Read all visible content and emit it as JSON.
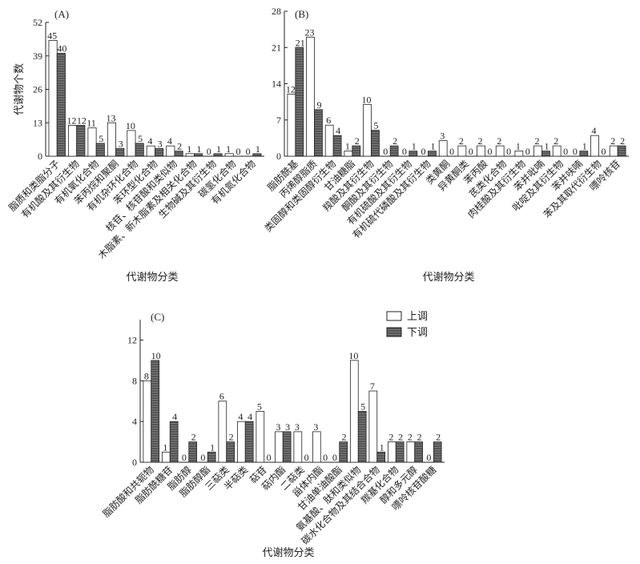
{
  "legend": {
    "up": "上调",
    "down": "下调"
  },
  "colors": {
    "up": "#ffffff",
    "down": "#555555"
  },
  "chart_data": [
    {
      "type": "bar",
      "panel": "(A)",
      "ylabel": "代谢物个数",
      "xlabel": "代谢物分类",
      "ylim": [
        0,
        52
      ],
      "yticks": [
        0,
        13,
        26,
        39,
        52
      ],
      "categories": [
        "脂质和类脂分子",
        "有机酸及其衍生物",
        "有机氧化合物",
        "苯丙烷和聚酮",
        "有机杂环化合物",
        "苯环型化合物",
        "核苷、核苷酸和类似物",
        "木脂素、新木脂素及相关化合物",
        "生物碱及其衍生物",
        "碳氢化合物",
        "有机氮化合物"
      ],
      "series": [
        {
          "name": "上调",
          "values": [
            45,
            12,
            11,
            13,
            10,
            4,
            4,
            1,
            0,
            1,
            0
          ]
        },
        {
          "name": "下调",
          "values": [
            40,
            12,
            5,
            3,
            5,
            3,
            2,
            1,
            1,
            0,
            1
          ]
        }
      ]
    },
    {
      "type": "bar",
      "panel": "(B)",
      "xlabel": "代谢物分类",
      "ylim": [
        0,
        28
      ],
      "yticks": [
        0,
        7,
        14,
        21,
        28
      ],
      "categories": [
        "脂肪酰基",
        "丙烯醇脂质",
        "类固醇和类固醇衍生物",
        "甘油糖脂",
        "羧酸及其衍生物",
        "酮酸及其衍生物",
        "有机硫酸及其衍生物",
        "有机硫代磷酸及其衍生物",
        "类黄酮",
        "异黄酮类",
        "苯丙酸",
        "芪类化合物",
        "肉桂酸及其衍生物",
        "苯并吡喃",
        "吡啶及其衍生物",
        "苯并呋喃",
        "苯及其取代衍生物",
        "嘌呤核苷"
      ],
      "series": [
        {
          "name": "上调",
          "values": [
            12,
            23,
            6,
            1,
            10,
            0,
            0,
            0,
            3,
            2,
            2,
            2,
            1,
            2,
            2,
            0,
            4,
            2
          ]
        },
        {
          "name": "下调",
          "values": [
            21,
            9,
            4,
            2,
            5,
            2,
            1,
            1,
            0,
            0,
            0,
            0,
            0,
            1,
            0,
            1,
            0,
            2
          ]
        }
      ]
    },
    {
      "type": "bar",
      "panel": "(C)",
      "xlabel": "代谢物分类",
      "ylim": [
        0,
        14
      ],
      "yticks": [
        0,
        4,
        8,
        12
      ],
      "categories": [
        "脂肪酸和共轭物",
        "脂肪酰糖苷",
        "脂肪醇",
        "脂肪醇酯",
        "三萜类",
        "半萜类",
        "萜苷",
        "萜内酯",
        "二萜类",
        "甾体内酯",
        "甘油单油酸酯",
        "氨基酸、肽和类似物",
        "碳水化合物及其结合合物",
        "羰基化合物",
        "醇和多元醇",
        "嘌呤核苷酸糖"
      ],
      "series": [
        {
          "name": "上调",
          "values": [
            8,
            1,
            0,
            0,
            6,
            4,
            5,
            3,
            3,
            3,
            0,
            10,
            7,
            2,
            2,
            0
          ]
        },
        {
          "name": "下调",
          "values": [
            10,
            4,
            2,
            1,
            2,
            4,
            0,
            3,
            0,
            0,
            2,
            5,
            1,
            2,
            2,
            2
          ]
        }
      ]
    }
  ]
}
